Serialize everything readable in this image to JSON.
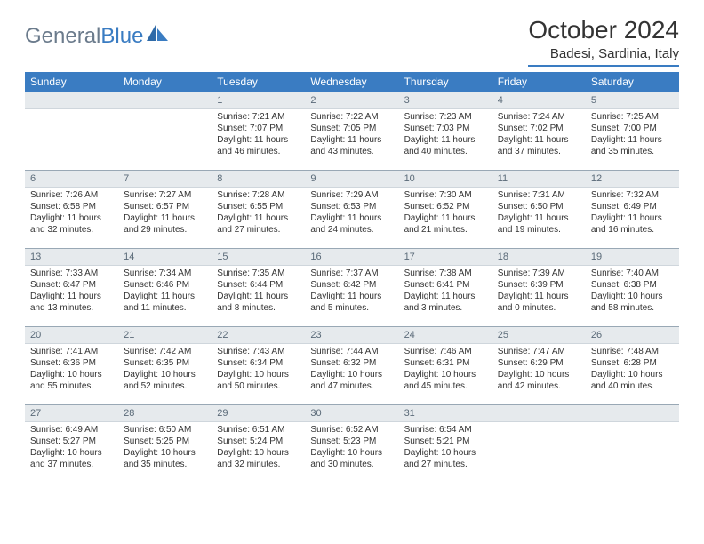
{
  "brand": {
    "part1": "General",
    "part2": "Blue"
  },
  "title": "October 2024",
  "location": "Badesi, Sardinia, Italy",
  "colors": {
    "header_bg": "#3a7cc2",
    "header_text": "#ffffff",
    "band_bg": "#e6eaed",
    "band_border_top": "#99a8b5",
    "text": "#333333",
    "logo_gray": "#6b7b8c",
    "logo_blue": "#3a7cc2"
  },
  "day_headers": [
    "Sunday",
    "Monday",
    "Tuesday",
    "Wednesday",
    "Thursday",
    "Friday",
    "Saturday"
  ],
  "weeks": [
    [
      {
        "n": "",
        "sunrise": "",
        "sunset": "",
        "daylight": ""
      },
      {
        "n": "",
        "sunrise": "",
        "sunset": "",
        "daylight": ""
      },
      {
        "n": "1",
        "sunrise": "Sunrise: 7:21 AM",
        "sunset": "Sunset: 7:07 PM",
        "daylight": "Daylight: 11 hours and 46 minutes."
      },
      {
        "n": "2",
        "sunrise": "Sunrise: 7:22 AM",
        "sunset": "Sunset: 7:05 PM",
        "daylight": "Daylight: 11 hours and 43 minutes."
      },
      {
        "n": "3",
        "sunrise": "Sunrise: 7:23 AM",
        "sunset": "Sunset: 7:03 PM",
        "daylight": "Daylight: 11 hours and 40 minutes."
      },
      {
        "n": "4",
        "sunrise": "Sunrise: 7:24 AM",
        "sunset": "Sunset: 7:02 PM",
        "daylight": "Daylight: 11 hours and 37 minutes."
      },
      {
        "n": "5",
        "sunrise": "Sunrise: 7:25 AM",
        "sunset": "Sunset: 7:00 PM",
        "daylight": "Daylight: 11 hours and 35 minutes."
      }
    ],
    [
      {
        "n": "6",
        "sunrise": "Sunrise: 7:26 AM",
        "sunset": "Sunset: 6:58 PM",
        "daylight": "Daylight: 11 hours and 32 minutes."
      },
      {
        "n": "7",
        "sunrise": "Sunrise: 7:27 AM",
        "sunset": "Sunset: 6:57 PM",
        "daylight": "Daylight: 11 hours and 29 minutes."
      },
      {
        "n": "8",
        "sunrise": "Sunrise: 7:28 AM",
        "sunset": "Sunset: 6:55 PM",
        "daylight": "Daylight: 11 hours and 27 minutes."
      },
      {
        "n": "9",
        "sunrise": "Sunrise: 7:29 AM",
        "sunset": "Sunset: 6:53 PM",
        "daylight": "Daylight: 11 hours and 24 minutes."
      },
      {
        "n": "10",
        "sunrise": "Sunrise: 7:30 AM",
        "sunset": "Sunset: 6:52 PM",
        "daylight": "Daylight: 11 hours and 21 minutes."
      },
      {
        "n": "11",
        "sunrise": "Sunrise: 7:31 AM",
        "sunset": "Sunset: 6:50 PM",
        "daylight": "Daylight: 11 hours and 19 minutes."
      },
      {
        "n": "12",
        "sunrise": "Sunrise: 7:32 AM",
        "sunset": "Sunset: 6:49 PM",
        "daylight": "Daylight: 11 hours and 16 minutes."
      }
    ],
    [
      {
        "n": "13",
        "sunrise": "Sunrise: 7:33 AM",
        "sunset": "Sunset: 6:47 PM",
        "daylight": "Daylight: 11 hours and 13 minutes."
      },
      {
        "n": "14",
        "sunrise": "Sunrise: 7:34 AM",
        "sunset": "Sunset: 6:46 PM",
        "daylight": "Daylight: 11 hours and 11 minutes."
      },
      {
        "n": "15",
        "sunrise": "Sunrise: 7:35 AM",
        "sunset": "Sunset: 6:44 PM",
        "daylight": "Daylight: 11 hours and 8 minutes."
      },
      {
        "n": "16",
        "sunrise": "Sunrise: 7:37 AM",
        "sunset": "Sunset: 6:42 PM",
        "daylight": "Daylight: 11 hours and 5 minutes."
      },
      {
        "n": "17",
        "sunrise": "Sunrise: 7:38 AM",
        "sunset": "Sunset: 6:41 PM",
        "daylight": "Daylight: 11 hours and 3 minutes."
      },
      {
        "n": "18",
        "sunrise": "Sunrise: 7:39 AM",
        "sunset": "Sunset: 6:39 PM",
        "daylight": "Daylight: 11 hours and 0 minutes."
      },
      {
        "n": "19",
        "sunrise": "Sunrise: 7:40 AM",
        "sunset": "Sunset: 6:38 PM",
        "daylight": "Daylight: 10 hours and 58 minutes."
      }
    ],
    [
      {
        "n": "20",
        "sunrise": "Sunrise: 7:41 AM",
        "sunset": "Sunset: 6:36 PM",
        "daylight": "Daylight: 10 hours and 55 minutes."
      },
      {
        "n": "21",
        "sunrise": "Sunrise: 7:42 AM",
        "sunset": "Sunset: 6:35 PM",
        "daylight": "Daylight: 10 hours and 52 minutes."
      },
      {
        "n": "22",
        "sunrise": "Sunrise: 7:43 AM",
        "sunset": "Sunset: 6:34 PM",
        "daylight": "Daylight: 10 hours and 50 minutes."
      },
      {
        "n": "23",
        "sunrise": "Sunrise: 7:44 AM",
        "sunset": "Sunset: 6:32 PM",
        "daylight": "Daylight: 10 hours and 47 minutes."
      },
      {
        "n": "24",
        "sunrise": "Sunrise: 7:46 AM",
        "sunset": "Sunset: 6:31 PM",
        "daylight": "Daylight: 10 hours and 45 minutes."
      },
      {
        "n": "25",
        "sunrise": "Sunrise: 7:47 AM",
        "sunset": "Sunset: 6:29 PM",
        "daylight": "Daylight: 10 hours and 42 minutes."
      },
      {
        "n": "26",
        "sunrise": "Sunrise: 7:48 AM",
        "sunset": "Sunset: 6:28 PM",
        "daylight": "Daylight: 10 hours and 40 minutes."
      }
    ],
    [
      {
        "n": "27",
        "sunrise": "Sunrise: 6:49 AM",
        "sunset": "Sunset: 5:27 PM",
        "daylight": "Daylight: 10 hours and 37 minutes."
      },
      {
        "n": "28",
        "sunrise": "Sunrise: 6:50 AM",
        "sunset": "Sunset: 5:25 PM",
        "daylight": "Daylight: 10 hours and 35 minutes."
      },
      {
        "n": "29",
        "sunrise": "Sunrise: 6:51 AM",
        "sunset": "Sunset: 5:24 PM",
        "daylight": "Daylight: 10 hours and 32 minutes."
      },
      {
        "n": "30",
        "sunrise": "Sunrise: 6:52 AM",
        "sunset": "Sunset: 5:23 PM",
        "daylight": "Daylight: 10 hours and 30 minutes."
      },
      {
        "n": "31",
        "sunrise": "Sunrise: 6:54 AM",
        "sunset": "Sunset: 5:21 PM",
        "daylight": "Daylight: 10 hours and 27 minutes."
      },
      {
        "n": "",
        "sunrise": "",
        "sunset": "",
        "daylight": ""
      },
      {
        "n": "",
        "sunrise": "",
        "sunset": "",
        "daylight": ""
      }
    ]
  ]
}
